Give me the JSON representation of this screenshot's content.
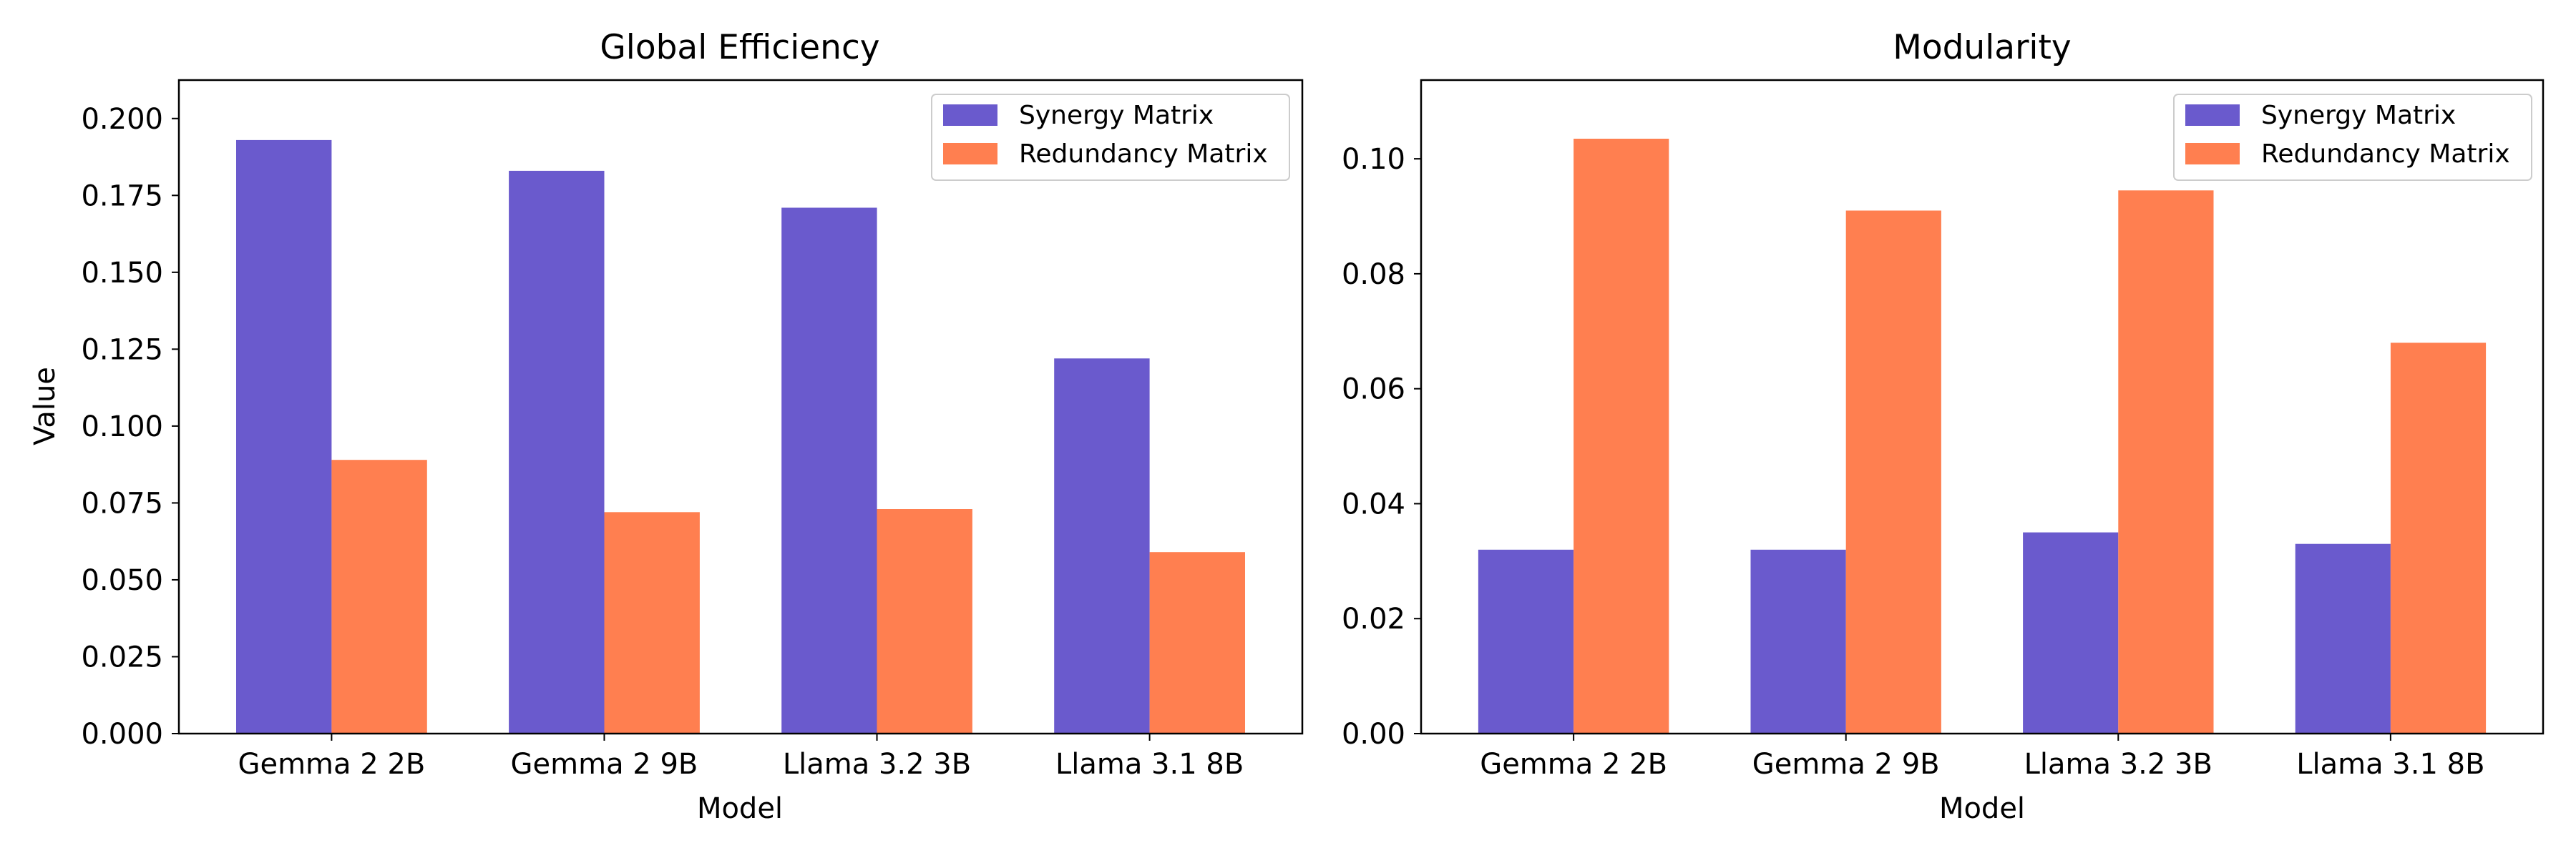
{
  "chart_data": [
    {
      "type": "bar",
      "title": "Global Efficiency",
      "xlabel": "Model",
      "ylabel": "Value",
      "categories": [
        "Gemma 2 2B",
        "Gemma 2 9B",
        "Llama 3.2 3B",
        "Llama 3.1 8B"
      ],
      "series": [
        {
          "name": "Synergy Matrix",
          "color": "#6A5ACD",
          "values": [
            0.193,
            0.183,
            0.171,
            0.122
          ]
        },
        {
          "name": "Redundancy Matrix",
          "color": "#FF7F50",
          "values": [
            0.089,
            0.072,
            0.073,
            0.059
          ]
        }
      ],
      "ylim": [
        0,
        0.2125
      ],
      "yticks": [
        "0.000",
        "0.025",
        "0.050",
        "0.075",
        "0.100",
        "0.125",
        "0.150",
        "0.175",
        "0.200"
      ],
      "grid": false,
      "legend": "upper right"
    },
    {
      "type": "bar",
      "title": "Modularity",
      "xlabel": "Model",
      "ylabel": "",
      "categories": [
        "Gemma 2 2B",
        "Gemma 2 9B",
        "Llama 3.2 3B",
        "Llama 3.1 8B"
      ],
      "series": [
        {
          "name": "Synergy Matrix",
          "color": "#6A5ACD",
          "values": [
            0.032,
            0.032,
            0.035,
            0.033
          ]
        },
        {
          "name": "Redundancy Matrix",
          "color": "#FF7F50",
          "values": [
            0.1035,
            0.091,
            0.0945,
            0.068
          ]
        }
      ],
      "ylim": [
        0,
        0.1137
      ],
      "yticks": [
        "0.00",
        "0.02",
        "0.04",
        "0.06",
        "0.08",
        "0.10"
      ],
      "grid": false,
      "legend": "upper right"
    }
  ]
}
